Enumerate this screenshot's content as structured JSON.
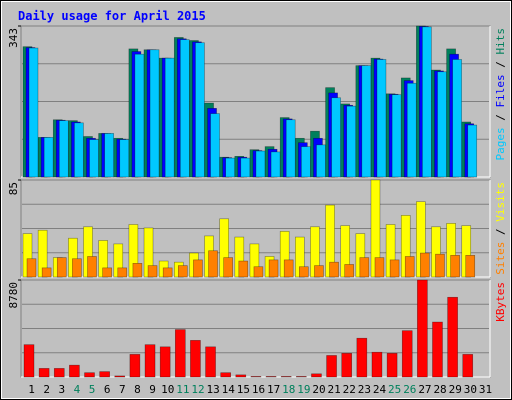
{
  "title": "Daily usage for April 2015",
  "legend_separator": " / ",
  "chart_data": [
    {
      "type": "bar",
      "ylim": [
        0,
        343
      ],
      "yticks": [
        343
      ],
      "series": [
        {
          "name": "Hits",
          "color": "#00805c",
          "values": [
            296,
            90,
            130,
            128,
            92,
            99,
            88,
            291,
            289,
            270,
            317,
            310,
            168,
            45,
            47,
            62,
            69,
            135,
            88,
            104,
            203,
            166,
            253,
            270,
            189,
            225,
            343,
            243,
            291,
            125,
            null
          ]
        },
        {
          "name": "Files",
          "color": "#0000ff",
          "values": [
            294,
            90,
            129,
            125,
            88,
            99,
            86,
            285,
            289,
            270,
            314,
            307,
            156,
            44,
            45,
            60,
            63,
            132,
            78,
            88,
            191,
            163,
            253,
            268,
            188,
            219,
            342,
            241,
            279,
            121,
            null
          ]
        },
        {
          "name": "Pages",
          "color": "#00c8ff",
          "values": [
            293,
            90,
            128,
            123,
            85,
            99,
            85,
            279,
            289,
            270,
            312,
            305,
            144,
            43,
            43,
            59,
            57,
            130,
            69,
            73,
            180,
            161,
            253,
            267,
            187,
            213,
            341,
            239,
            267,
            118,
            null
          ]
        }
      ]
    },
    {
      "type": "bar",
      "ylim": [
        0,
        85
      ],
      "yticks": [
        85
      ],
      "series": [
        {
          "name": "Visits",
          "color": "#ffff00",
          "values": [
            38,
            41,
            17,
            34,
            44,
            32,
            29,
            46,
            43,
            14,
            13,
            21,
            36,
            51,
            35,
            29,
            18,
            40,
            35,
            44,
            63,
            45,
            38,
            85,
            46,
            54,
            66,
            44,
            47,
            45,
            null
          ]
        },
        {
          "name": "Sites",
          "color": "#ff8000",
          "values": [
            16,
            8,
            17,
            16,
            18,
            8,
            8,
            12,
            10,
            8,
            10,
            15,
            23,
            17,
            14,
            9,
            15,
            15,
            9,
            10,
            13,
            11,
            17,
            17,
            15,
            18,
            21,
            20,
            19,
            19,
            null
          ]
        }
      ]
    },
    {
      "type": "bar",
      "ylim": [
        0,
        8780
      ],
      "yticks": [
        8780
      ],
      "series": [
        {
          "name": "KBytes",
          "color": "#ff0000",
          "values": [
            2927,
            780,
            780,
            1073,
            390,
            488,
            98,
            2049,
            2927,
            2732,
            4293,
            3317,
            2732,
            390,
            195,
            50,
            50,
            50,
            50,
            290,
            1951,
            2146,
            3512,
            2244,
            2146,
            4195,
            8780,
            4975,
            7219,
            2049,
            null
          ]
        }
      ],
      "categories": [
        "1",
        "2",
        "3",
        "4",
        "5",
        "6",
        "7",
        "8",
        "9",
        "10",
        "11",
        "12",
        "13",
        "14",
        "15",
        "16",
        "17",
        "18",
        "19",
        "20",
        "21",
        "22",
        "23",
        "24",
        "25",
        "26",
        "27",
        "28",
        "29",
        "30",
        "31"
      ],
      "category_colors": [
        "#000000",
        "#000000",
        "#000000",
        "#00805c",
        "#00805c",
        "#000000",
        "#000000",
        "#000000",
        "#000000",
        "#000000",
        "#00805c",
        "#00805c",
        "#000000",
        "#000000",
        "#000000",
        "#000000",
        "#000000",
        "#00805c",
        "#00805c",
        "#000000",
        "#000000",
        "#000000",
        "#000000",
        "#000000",
        "#00805c",
        "#00805c",
        "#000000",
        "#000000",
        "#000000",
        "#000000",
        "#000000"
      ]
    }
  ]
}
